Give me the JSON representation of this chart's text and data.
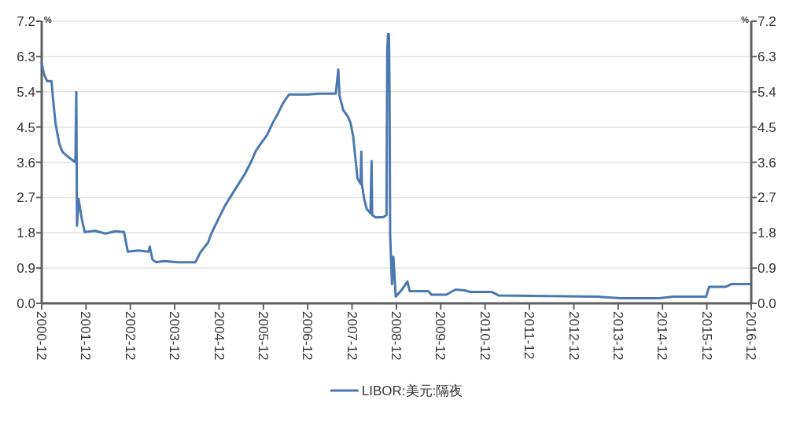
{
  "chart_data": {
    "type": "line",
    "ylabel": "%",
    "y2label": "%",
    "xlim": [
      "2000-12",
      "2016-12"
    ],
    "xticks": [
      "2000-12",
      "2001-12",
      "2002-12",
      "2003-12",
      "2004-12",
      "2005-12",
      "2006-12",
      "2007-12",
      "2008-12",
      "2009-12",
      "2010-12",
      "2011-12",
      "2012-12",
      "2013-12",
      "2014-12",
      "2015-12",
      "2016-12"
    ],
    "ylim": [
      0,
      7.2
    ],
    "yticks": [
      {
        "value": 0,
        "label": "0.0"
      },
      0.9,
      1.8,
      2.7,
      3.6,
      4.5,
      5.4,
      6.3,
      7.2
    ],
    "y2lim": [
      0,
      7.2
    ],
    "y2ticks": [
      {
        "value": 0,
        "label": "0.0"
      },
      0.9,
      1.8,
      2.7,
      3.6,
      4.5,
      5.4,
      6.3,
      7.2
    ],
    "grid": "y",
    "legend": "bottom",
    "series": [
      {
        "name": "LIBOR:美元:隔夜",
        "color": "#4a78b0",
        "x": [
          "2000-12-01",
          "2000-12-20",
          "2001-01-15",
          "2001-02-20",
          "2001-03-05",
          "2001-03-25",
          "2001-04-25",
          "2001-05-20",
          "2001-07-10",
          "2001-09-05",
          "2001-09-12",
          "2001-09-18",
          "2001-10-01",
          "2001-10-25",
          "2001-11-20",
          "2002-02-15",
          "2002-05-10",
          "2002-08-01",
          "2002-10-10",
          "2002-11-10",
          "2003-02-01",
          "2003-05-01",
          "2003-05-10",
          "2003-06-01",
          "2003-06-30",
          "2003-09-01",
          "2004-01-01",
          "2004-05-20",
          "2004-06-30",
          "2004-09-01",
          "2004-10-01",
          "2004-12-01",
          "2005-01-20",
          "2005-03-01",
          "2005-05-01",
          "2005-07-01",
          "2005-08-20",
          "2005-10-01",
          "2005-11-15",
          "2006-01-01",
          "2006-02-15",
          "2006-04-01",
          "2006-05-10",
          "2006-06-30",
          "2006-12-01",
          "2007-03-01",
          "2007-07-20",
          "2007-08-10",
          "2007-08-20",
          "2007-09-20",
          "2007-10-31",
          "2007-11-20",
          "2007-12-10",
          "2008-01-15",
          "2008-02-10",
          "2008-02-15",
          "2008-02-20",
          "2008-03-10",
          "2008-04-01",
          "2008-05-01",
          "2008-05-10",
          "2008-05-15",
          "2008-06-15",
          "2008-08-15",
          "2008-09-10",
          "2008-09-16",
          "2008-09-22",
          "2008-09-30",
          "2008-10-05",
          "2008-10-10",
          "2008-10-25",
          "2008-11-05",
          "2008-11-25",
          "2009-01-15",
          "2009-03-01",
          "2009-03-20",
          "2009-08-20",
          "2009-09-15",
          "2010-01-15",
          "2010-04-01",
          "2010-06-15",
          "2010-08-01",
          "2011-01-25",
          "2011-03-25",
          "2013-06-10",
          "2013-12-20",
          "2014-11-01",
          "2015-02-25",
          "2015-11-25",
          "2015-12-20",
          "2016-05-01",
          "2016-06-20",
          "2016-11-20"
        ],
        "values": [
          6.13,
          5.85,
          5.67,
          5.67,
          5.2,
          4.59,
          4.07,
          3.87,
          3.73,
          3.6,
          5.39,
          1.98,
          2.66,
          2.19,
          1.82,
          1.85,
          1.78,
          1.84,
          1.82,
          1.32,
          1.35,
          1.32,
          1.45,
          1.12,
          1.05,
          1.08,
          1.05,
          1.05,
          1.3,
          1.55,
          1.8,
          2.19,
          2.5,
          2.7,
          3.0,
          3.3,
          3.6,
          3.9,
          4.1,
          4.3,
          4.6,
          4.85,
          5.1,
          5.33,
          5.33,
          5.35,
          5.35,
          5.97,
          5.3,
          4.93,
          4.75,
          4.59,
          4.27,
          3.19,
          3.05,
          3.87,
          3.05,
          2.66,
          2.4,
          2.3,
          3.63,
          2.25,
          2.19,
          2.2,
          2.25,
          6.43,
          6.87,
          6.87,
          5.38,
          1.75,
          0.49,
          1.19,
          0.17,
          0.35,
          0.56,
          0.31,
          0.31,
          0.22,
          0.22,
          0.35,
          0.33,
          0.29,
          0.29,
          0.2,
          0.17,
          0.13,
          0.13,
          0.17,
          0.17,
          0.42,
          0.42,
          0.49,
          0.49
        ]
      }
    ]
  }
}
